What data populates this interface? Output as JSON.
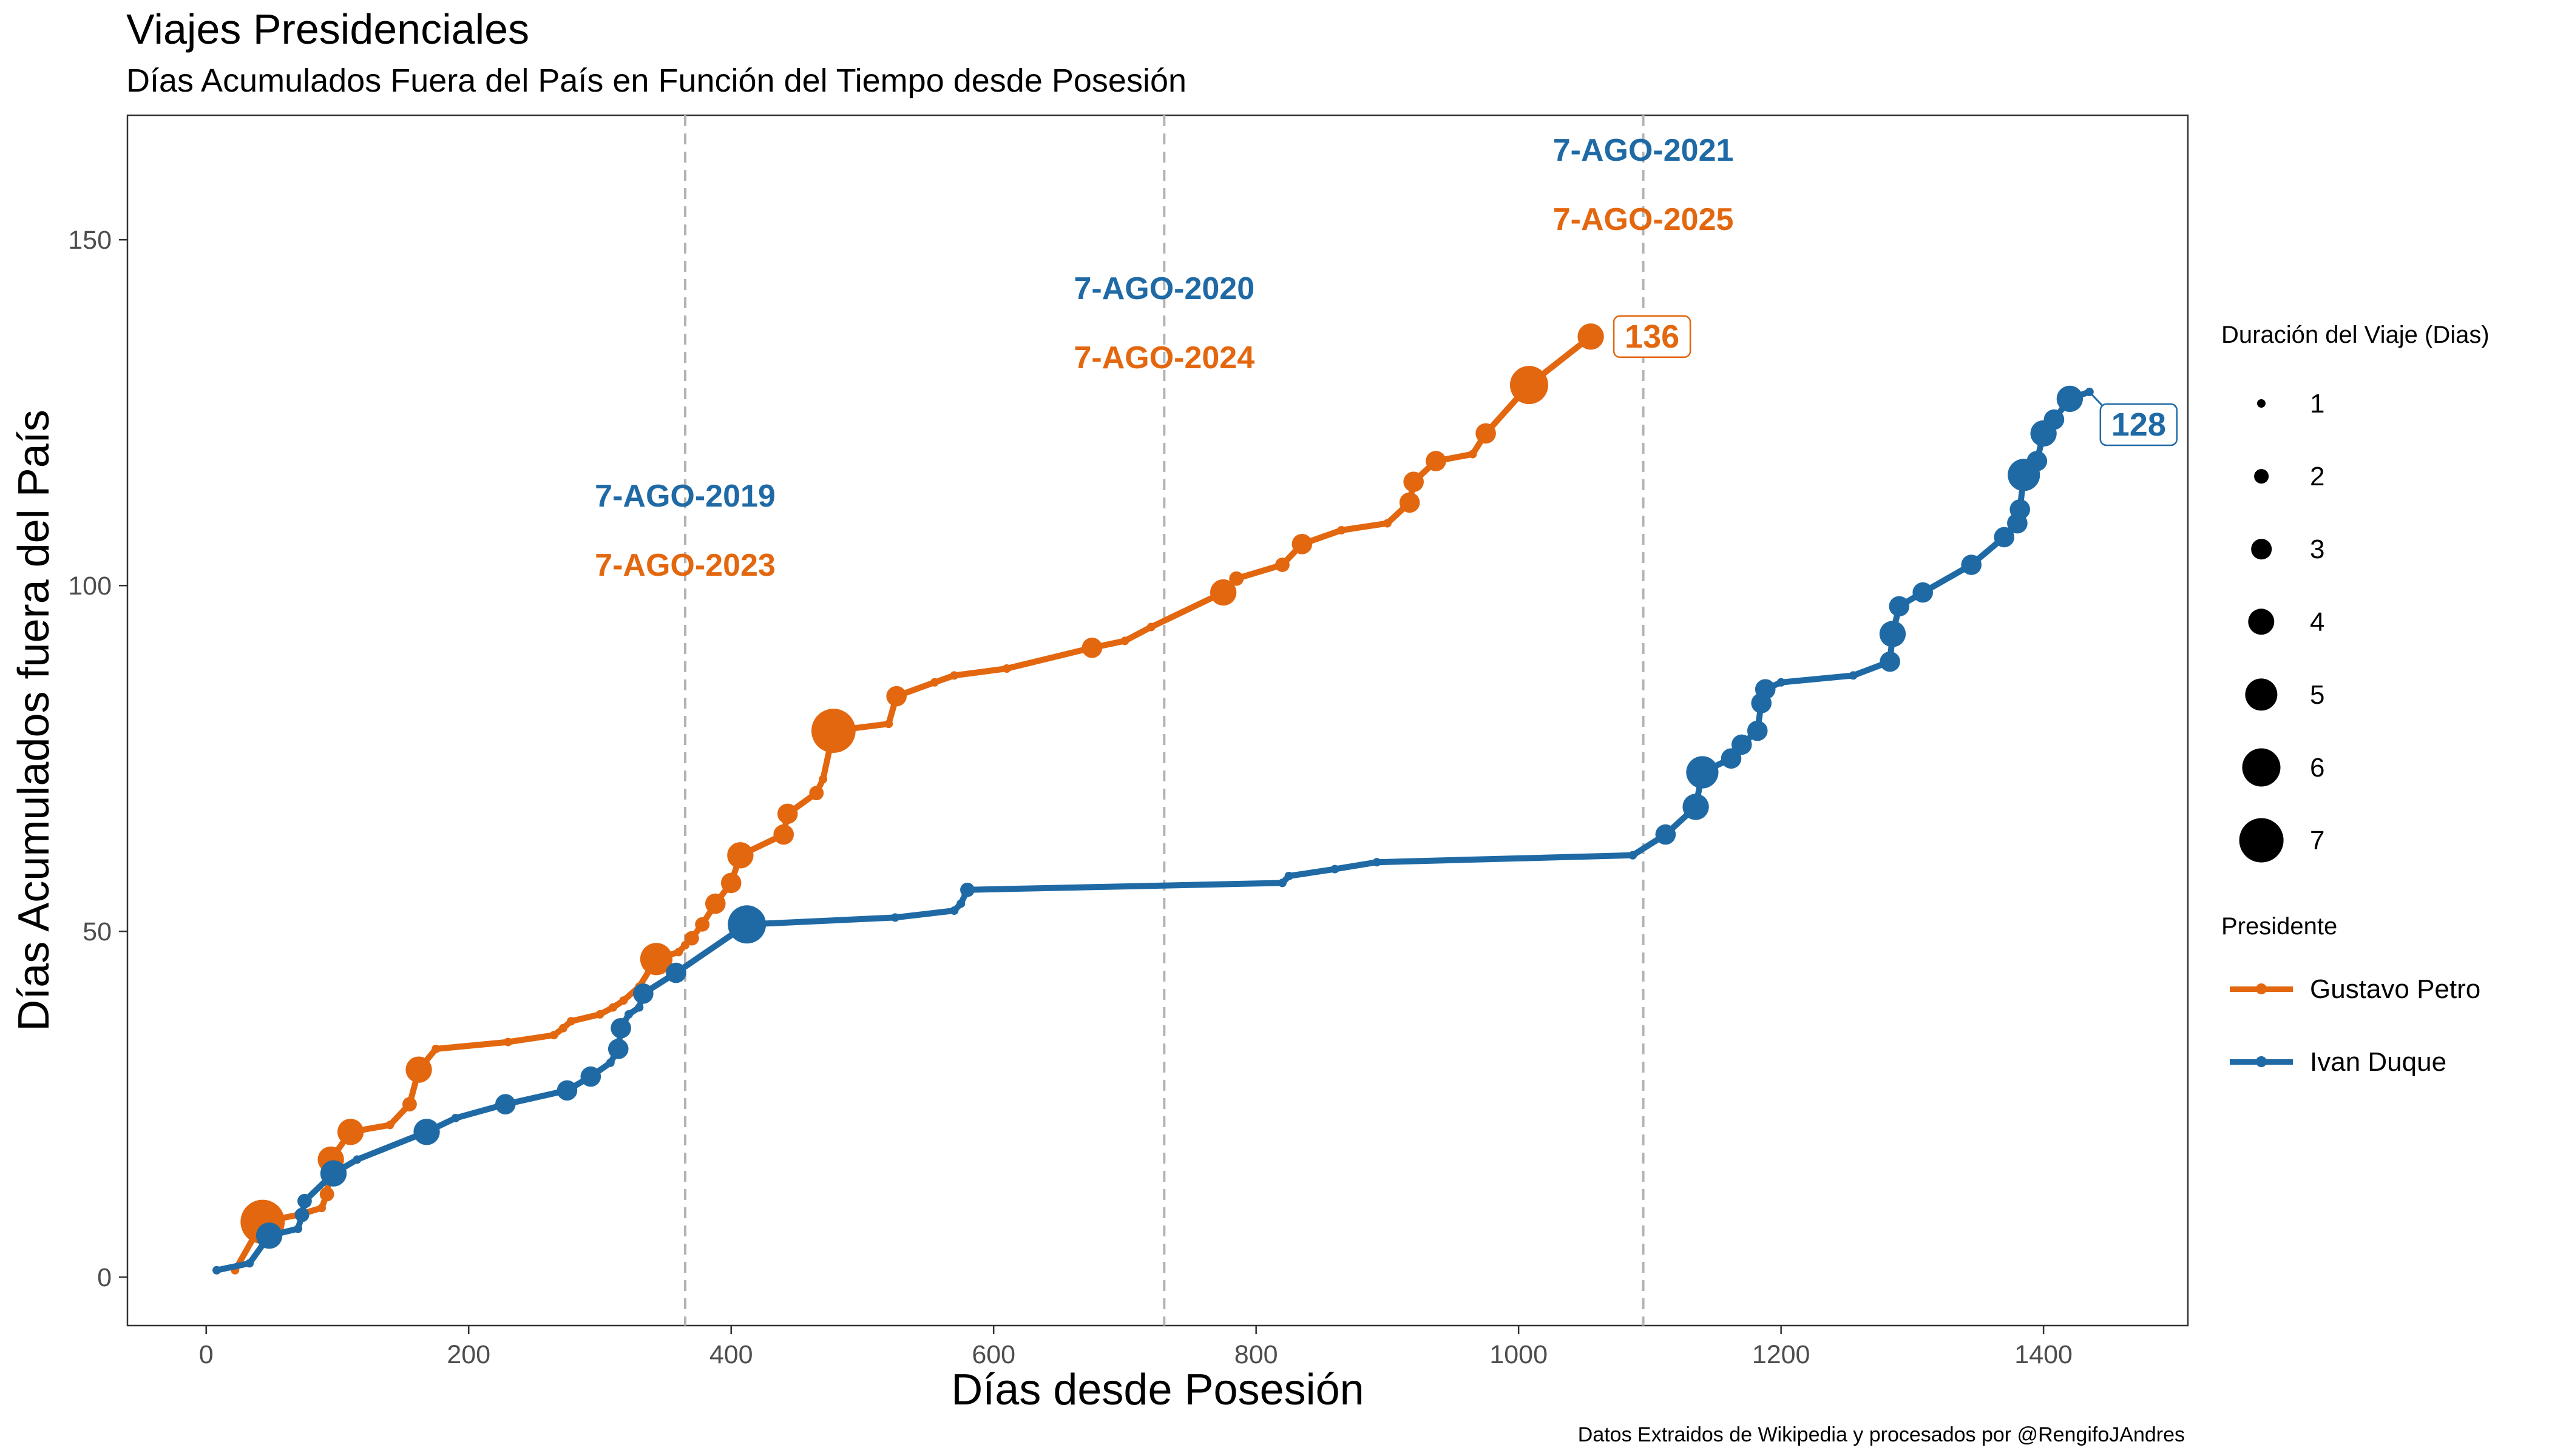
{
  "title": "Viajes Presidenciales",
  "subtitle": "Días Acumulados Fuera del País en Función del Tiempo desde Posesión",
  "caption": "Datos Extraidos de Wikipedia y procesados por @RengifoJAndres",
  "colors": {
    "Gustavo Petro": "#E3670F",
    "Ivan Duque": "#1F6AA5"
  },
  "chart_data": {
    "type": "line",
    "xlabel": "Días desde Posesión",
    "ylabel": "Días Acumulados fuera del País",
    "xlim": [
      -60,
      1510
    ],
    "ylim": [
      -7,
      168
    ],
    "x_ticks": [
      0,
      200,
      400,
      600,
      800,
      1000,
      1200,
      1400
    ],
    "y_ticks": [
      0,
      50,
      100,
      150
    ],
    "grid": false,
    "legend_position": "right",
    "vlines": [
      365,
      730,
      1095
    ],
    "annotations": [
      {
        "x": 365,
        "y": 113,
        "text": "7-AGO-2019",
        "series": "Ivan Duque"
      },
      {
        "x": 365,
        "y": 103,
        "text": "7-AGO-2023",
        "series": "Gustavo Petro"
      },
      {
        "x": 730,
        "y": 143,
        "text": "7-AGO-2020",
        "series": "Ivan Duque"
      },
      {
        "x": 730,
        "y": 133,
        "text": "7-AGO-2024",
        "series": "Gustavo Petro"
      },
      {
        "x": 1095,
        "y": 163,
        "text": "7-AGO-2021",
        "series": "Ivan Duque"
      },
      {
        "x": 1095,
        "y": 153,
        "text": "7-AGO-2025",
        "series": "Gustavo Petro"
      }
    ],
    "end_labels": [
      {
        "series": "Gustavo Petro",
        "x": 1055,
        "y": 136,
        "text": "136"
      },
      {
        "series": "Ivan Duque",
        "x": 1435,
        "y": 128,
        "text": "128"
      }
    ],
    "size_legend": {
      "title": "Duración del Viaje (Dias)",
      "values": [
        "1",
        "2",
        "3",
        "4",
        "5",
        "6",
        "7"
      ]
    },
    "color_legend": {
      "title": "Presidente",
      "entries": [
        "Gustavo Petro",
        "Ivan Duque"
      ]
    },
    "series": [
      {
        "name": "Gustavo Petro",
        "points": [
          [
            22,
            1,
            1
          ],
          [
            43,
            8,
            7
          ],
          [
            70,
            9,
            1
          ],
          [
            88,
            10,
            1
          ],
          [
            92,
            12,
            2
          ],
          [
            95,
            17,
            4
          ],
          [
            110,
            21,
            4
          ],
          [
            140,
            22,
            1
          ],
          [
            155,
            25,
            2
          ],
          [
            162,
            30,
            4
          ],
          [
            175,
            33,
            1
          ],
          [
            230,
            34,
            1
          ],
          [
            265,
            35,
            1
          ],
          [
            272,
            36,
            1
          ],
          [
            278,
            37,
            1
          ],
          [
            300,
            38,
            1
          ],
          [
            310,
            39,
            1
          ],
          [
            318,
            40,
            1
          ],
          [
            330,
            42,
            1
          ],
          [
            343,
            46,
            5
          ],
          [
            360,
            47,
            1
          ],
          [
            365,
            48,
            1
          ],
          [
            370,
            49,
            2
          ],
          [
            378,
            51,
            2
          ],
          [
            388,
            54,
            3
          ],
          [
            400,
            57,
            3
          ],
          [
            407,
            61,
            4
          ],
          [
            440,
            64,
            3
          ],
          [
            443,
            67,
            3
          ],
          [
            465,
            70,
            2
          ],
          [
            470,
            72,
            1
          ],
          [
            478,
            79,
            7
          ],
          [
            520,
            80,
            1
          ],
          [
            526,
            84,
            3
          ],
          [
            555,
            86,
            1
          ],
          [
            570,
            87,
            1
          ],
          [
            610,
            88,
            1
          ],
          [
            675,
            91,
            3
          ],
          [
            700,
            92,
            1
          ],
          [
            720,
            94,
            1
          ],
          [
            775,
            99,
            4
          ],
          [
            785,
            101,
            2
          ],
          [
            820,
            103,
            2
          ],
          [
            835,
            106,
            3
          ],
          [
            865,
            108,
            1
          ],
          [
            900,
            109,
            1
          ],
          [
            917,
            112,
            3
          ],
          [
            920,
            115,
            3
          ],
          [
            937,
            118,
            3
          ],
          [
            965,
            119,
            1
          ],
          [
            975,
            122,
            3
          ],
          [
            1008,
            129,
            6
          ],
          [
            1055,
            136,
            4
          ]
        ]
      },
      {
        "name": "Ivan Duque",
        "points": [
          [
            8,
            1,
            1
          ],
          [
            33,
            2,
            1
          ],
          [
            48,
            6,
            4
          ],
          [
            70,
            7,
            1
          ],
          [
            73,
            9,
            2
          ],
          [
            75,
            11,
            2
          ],
          [
            97,
            15,
            4
          ],
          [
            115,
            17,
            1
          ],
          [
            168,
            21,
            4
          ],
          [
            190,
            23,
            1
          ],
          [
            228,
            25,
            3
          ],
          [
            275,
            27,
            3
          ],
          [
            293,
            29,
            3
          ],
          [
            308,
            31,
            1
          ],
          [
            314,
            33,
            3
          ],
          [
            316,
            36,
            3
          ],
          [
            322,
            38,
            1
          ],
          [
            330,
            39,
            1
          ],
          [
            333,
            41,
            3
          ],
          [
            358,
            44,
            3
          ],
          [
            412,
            51,
            6
          ],
          [
            525,
            52,
            1
          ],
          [
            570,
            53,
            1
          ],
          [
            575,
            54,
            1
          ],
          [
            580,
            56,
            2
          ],
          [
            820,
            57,
            1
          ],
          [
            825,
            58,
            1
          ],
          [
            860,
            59,
            1
          ],
          [
            892,
            60,
            1
          ],
          [
            1087,
            61,
            1
          ],
          [
            1112,
            64,
            3
          ],
          [
            1135,
            68,
            4
          ],
          [
            1140,
            73,
            5
          ],
          [
            1162,
            75,
            3
          ],
          [
            1170,
            77,
            3
          ],
          [
            1182,
            79,
            3
          ],
          [
            1185,
            83,
            3
          ],
          [
            1188,
            85,
            3
          ],
          [
            1200,
            86,
            1
          ],
          [
            1255,
            87,
            1
          ],
          [
            1283,
            89,
            3
          ],
          [
            1285,
            93,
            4
          ],
          [
            1290,
            97,
            3
          ],
          [
            1308,
            99,
            3
          ],
          [
            1345,
            103,
            3
          ],
          [
            1370,
            107,
            3
          ],
          [
            1380,
            109,
            3
          ],
          [
            1382,
            111,
            3
          ],
          [
            1385,
            116,
            5
          ],
          [
            1395,
            118,
            3
          ],
          [
            1400,
            122,
            4
          ],
          [
            1408,
            124,
            3
          ],
          [
            1420,
            127,
            4
          ],
          [
            1435,
            128,
            1
          ]
        ]
      }
    ]
  }
}
